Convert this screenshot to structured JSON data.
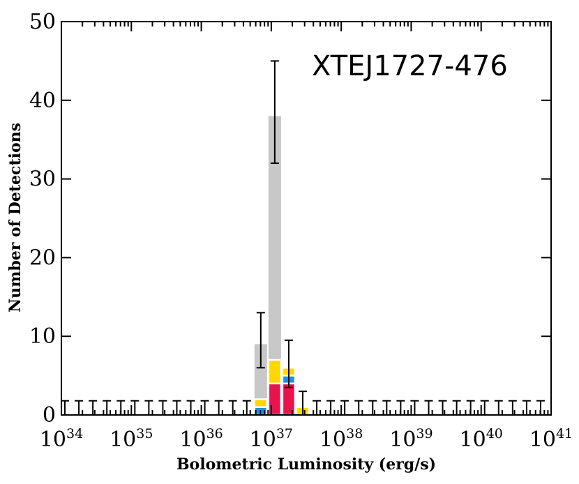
{
  "chart_data": {
    "type": "bar",
    "title": "XTEJ1727-476",
    "xlabel": "Bolometric Luminosity (erg/s)",
    "ylabel": "Number of Detections",
    "xscale": "log",
    "xlim_exponent": [
      34,
      41
    ],
    "ylim": [
      0,
      50
    ],
    "grid": false,
    "x_tick_labels": [
      {
        "base": "10",
        "exp": "34"
      },
      {
        "base": "10",
        "exp": "35"
      },
      {
        "base": "10",
        "exp": "36"
      },
      {
        "base": "10",
        "exp": "37"
      },
      {
        "base": "10",
        "exp": "38"
      },
      {
        "base": "10",
        "exp": "39"
      },
      {
        "base": "10",
        "exp": "40"
      },
      {
        "base": "10",
        "exp": "41"
      }
    ],
    "y_tick_labels": [
      "0",
      "10",
      "20",
      "30",
      "40",
      "50"
    ],
    "colors": {
      "total": "#c8c8c8",
      "yellow": "#ffd700",
      "blue": "#1e90dc",
      "red": "#e8154d"
    },
    "bins_log_lum": [
      [
        36.75,
        36.95
      ],
      [
        36.95,
        37.15
      ],
      [
        37.15,
        37.35
      ],
      [
        37.35,
        37.55
      ]
    ],
    "series": [
      {
        "key": "total",
        "values": [
          9,
          38,
          6,
          1
        ]
      },
      {
        "key": "yellow",
        "values": [
          2,
          7,
          6,
          1
        ]
      },
      {
        "key": "blue",
        "values": [
          1,
          0,
          5,
          0
        ]
      },
      {
        "key": "red",
        "values": [
          0,
          4,
          4,
          0
        ]
      }
    ],
    "error_bars": [
      {
        "x_log_lum": 36.85,
        "low": 6,
        "high": 13
      },
      {
        "x_log_lum": 37.05,
        "low": 32,
        "high": 45
      },
      {
        "x_log_lum": 37.25,
        "low": 3.5,
        "high": 9.5
      },
      {
        "x_log_lum": 37.45,
        "low": 0,
        "high": 3
      }
    ],
    "upper_limit_bars": {
      "x_log_lum": [
        34.05,
        34.25,
        34.45,
        34.65,
        34.85,
        35.05,
        35.25,
        35.45,
        35.65,
        35.85,
        36.05,
        36.25,
        36.45,
        36.65,
        37.65,
        37.85,
        38.05,
        38.25,
        38.45,
        38.65,
        38.85,
        39.05,
        39.25,
        39.45,
        39.65,
        39.85,
        40.05,
        40.25,
        40.45,
        40.65,
        40.85
      ],
      "high": 1.8
    }
  }
}
